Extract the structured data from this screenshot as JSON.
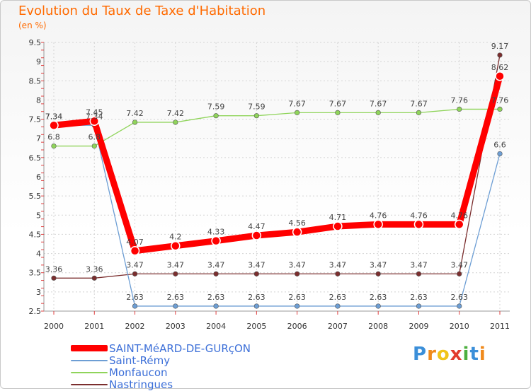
{
  "chart_data": {
    "type": "line",
    "title": "Evolution du Taux de Taxe d'Habitation",
    "subtitle": "(en %)",
    "x": [
      "2000",
      "2001",
      "2002",
      "2003",
      "2004",
      "2005",
      "2006",
      "2007",
      "2008",
      "2009",
      "2010",
      "2011"
    ],
    "ylim": [
      2.5,
      9.5
    ],
    "yticks": [
      "2.5",
      "3",
      "3.5",
      "4",
      "4.5",
      "5",
      "5.5",
      "6",
      "6.5",
      "7",
      "7.5",
      "8",
      "8.5",
      "9",
      "9.5"
    ],
    "grid": true,
    "series": [
      {
        "name": "SAINT-MéARD-DE-GURçON",
        "color": "#ff0000",
        "values": [
          7.34,
          7.45,
          4.07,
          4.2,
          4.33,
          4.47,
          4.56,
          4.71,
          4.76,
          4.76,
          4.76,
          8.62
        ],
        "labels": [
          "7.34",
          "7.45",
          "4.07",
          "4.2",
          "4.33",
          "4.47",
          "4.56",
          "4.71",
          "4.76",
          "4.76",
          "4.76",
          "8.62"
        ]
      },
      {
        "name": "Saint-Rémy",
        "color": "#6d9ed4",
        "values": [
          7.34,
          7.34,
          2.63,
          2.63,
          2.63,
          2.63,
          2.63,
          2.63,
          2.63,
          2.63,
          2.63,
          6.6
        ],
        "labels": [
          "7.34",
          "7.34",
          "2.63",
          "2.63",
          "2.63",
          "2.63",
          "2.63",
          "2.63",
          "2.63",
          "2.63",
          "2.63",
          "6.6"
        ]
      },
      {
        "name": "Monfaucon",
        "color": "#8fd45a",
        "values": [
          6.8,
          6.8,
          7.42,
          7.42,
          7.59,
          7.59,
          7.67,
          7.67,
          7.67,
          7.67,
          7.76,
          7.76
        ],
        "labels": [
          "6.8",
          "6.8",
          "7.42",
          "7.42",
          "7.59",
          "7.59",
          "7.67",
          "7.67",
          "7.67",
          "7.67",
          "7.76",
          "7.76"
        ]
      },
      {
        "name": "Nastringues",
        "color": "#7b2e2e",
        "values": [
          3.36,
          3.36,
          3.47,
          3.47,
          3.47,
          3.47,
          3.47,
          3.47,
          3.47,
          3.47,
          3.47,
          9.17
        ],
        "labels": [
          "3.36",
          "3.36",
          "3.47",
          "3.47",
          "3.47",
          "3.47",
          "3.47",
          "3.47",
          "3.47",
          "3.47",
          "3.47",
          "9.17"
        ]
      }
    ]
  },
  "legend": [
    "SAINT-MéARD-DE-GURçON",
    "Saint-Rémy",
    "Monfaucon",
    "Nastringues"
  ],
  "brand": {
    "letters": [
      "P",
      "r",
      "o",
      "x",
      "i",
      "t",
      "i"
    ],
    "colors": [
      "#3b8fd9",
      "#f08a1c",
      "#f0c419",
      "#e23a2c",
      "#4caf3f",
      "#3b8fd9",
      "#f08a1c"
    ]
  }
}
